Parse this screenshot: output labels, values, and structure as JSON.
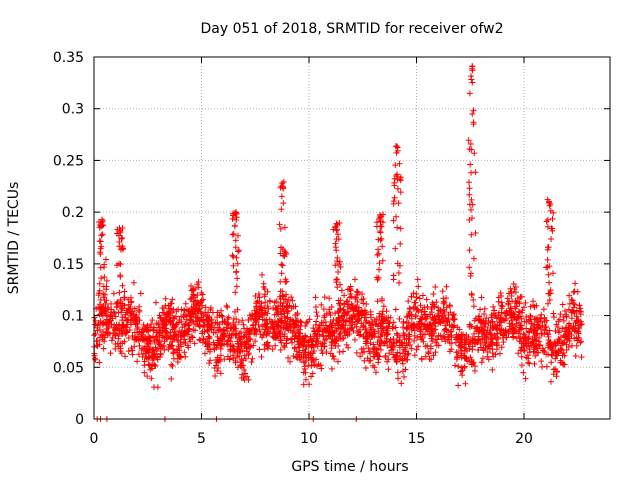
{
  "chart_data": {
    "type": "scatter",
    "title": "Day 051 of 2018, SRMTID for receiver ofw2",
    "xlabel": "GPS time / hours",
    "ylabel": "SRMTID / TECUs",
    "xlim": [
      0,
      24
    ],
    "ylim": [
      0,
      0.35
    ],
    "xticks": [
      0,
      5,
      10,
      15,
      20
    ],
    "xtick_labels": [
      "0",
      "5",
      "10",
      "15",
      "20"
    ],
    "yticks": [
      0,
      0.05,
      0.1,
      0.15,
      0.2,
      0.25,
      0.3,
      0.35
    ],
    "ytick_labels": [
      "0",
      "0.05",
      "0.1",
      "0.15",
      "0.2",
      "0.25",
      "0.3",
      "0.35"
    ],
    "grid": true,
    "marker": "+",
    "color": "#ff0000",
    "series": [
      {
        "name": "SRMTID",
        "x_range": [
          0.0,
          22.7
        ],
        "baseline": 0.085,
        "spread": 0.045,
        "point_count": 2600,
        "bursts": [
          {
            "x": 0.4,
            "peak": 0.195
          },
          {
            "x": 1.2,
            "peak": 0.185
          },
          {
            "x": 6.6,
            "peak": 0.2
          },
          {
            "x": 8.8,
            "peak": 0.23
          },
          {
            "x": 11.3,
            "peak": 0.19
          },
          {
            "x": 13.3,
            "peak": 0.2
          },
          {
            "x": 14.1,
            "peak": 0.265
          },
          {
            "x": 17.6,
            "peak": 0.342
          },
          {
            "x": 21.2,
            "peak": 0.213
          }
        ],
        "zero_points": [
          0.15,
          0.3,
          0.6,
          3.3,
          5.7,
          10.2,
          12.2
        ]
      }
    ]
  }
}
